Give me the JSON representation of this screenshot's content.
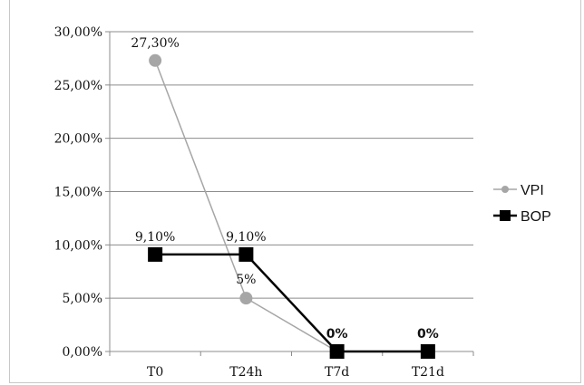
{
  "chart_data": {
    "type": "line",
    "categories": [
      "T0",
      "T24h",
      "T7d",
      "T21d"
    ],
    "ylim": [
      0,
      30
    ],
    "y_ticks": [
      "0,00%",
      "5,00%",
      "10,00%",
      "15,00%",
      "20,00%",
      "25,00%",
      "30,00%"
    ],
    "grid": true,
    "legend_position": "right",
    "series": [
      {
        "name": "VPI",
        "values": [
          27.3,
          5,
          0,
          null
        ],
        "labels": [
          "27,30%",
          "5%",
          "",
          ""
        ],
        "color": "#a6a6a6",
        "marker": "circle"
      },
      {
        "name": "BOP",
        "values": [
          9.1,
          9.1,
          0,
          0
        ],
        "labels": [
          "9,10%",
          "9,10%",
          "0%",
          "0%"
        ],
        "color": "#000000",
        "marker": "square"
      }
    ]
  }
}
